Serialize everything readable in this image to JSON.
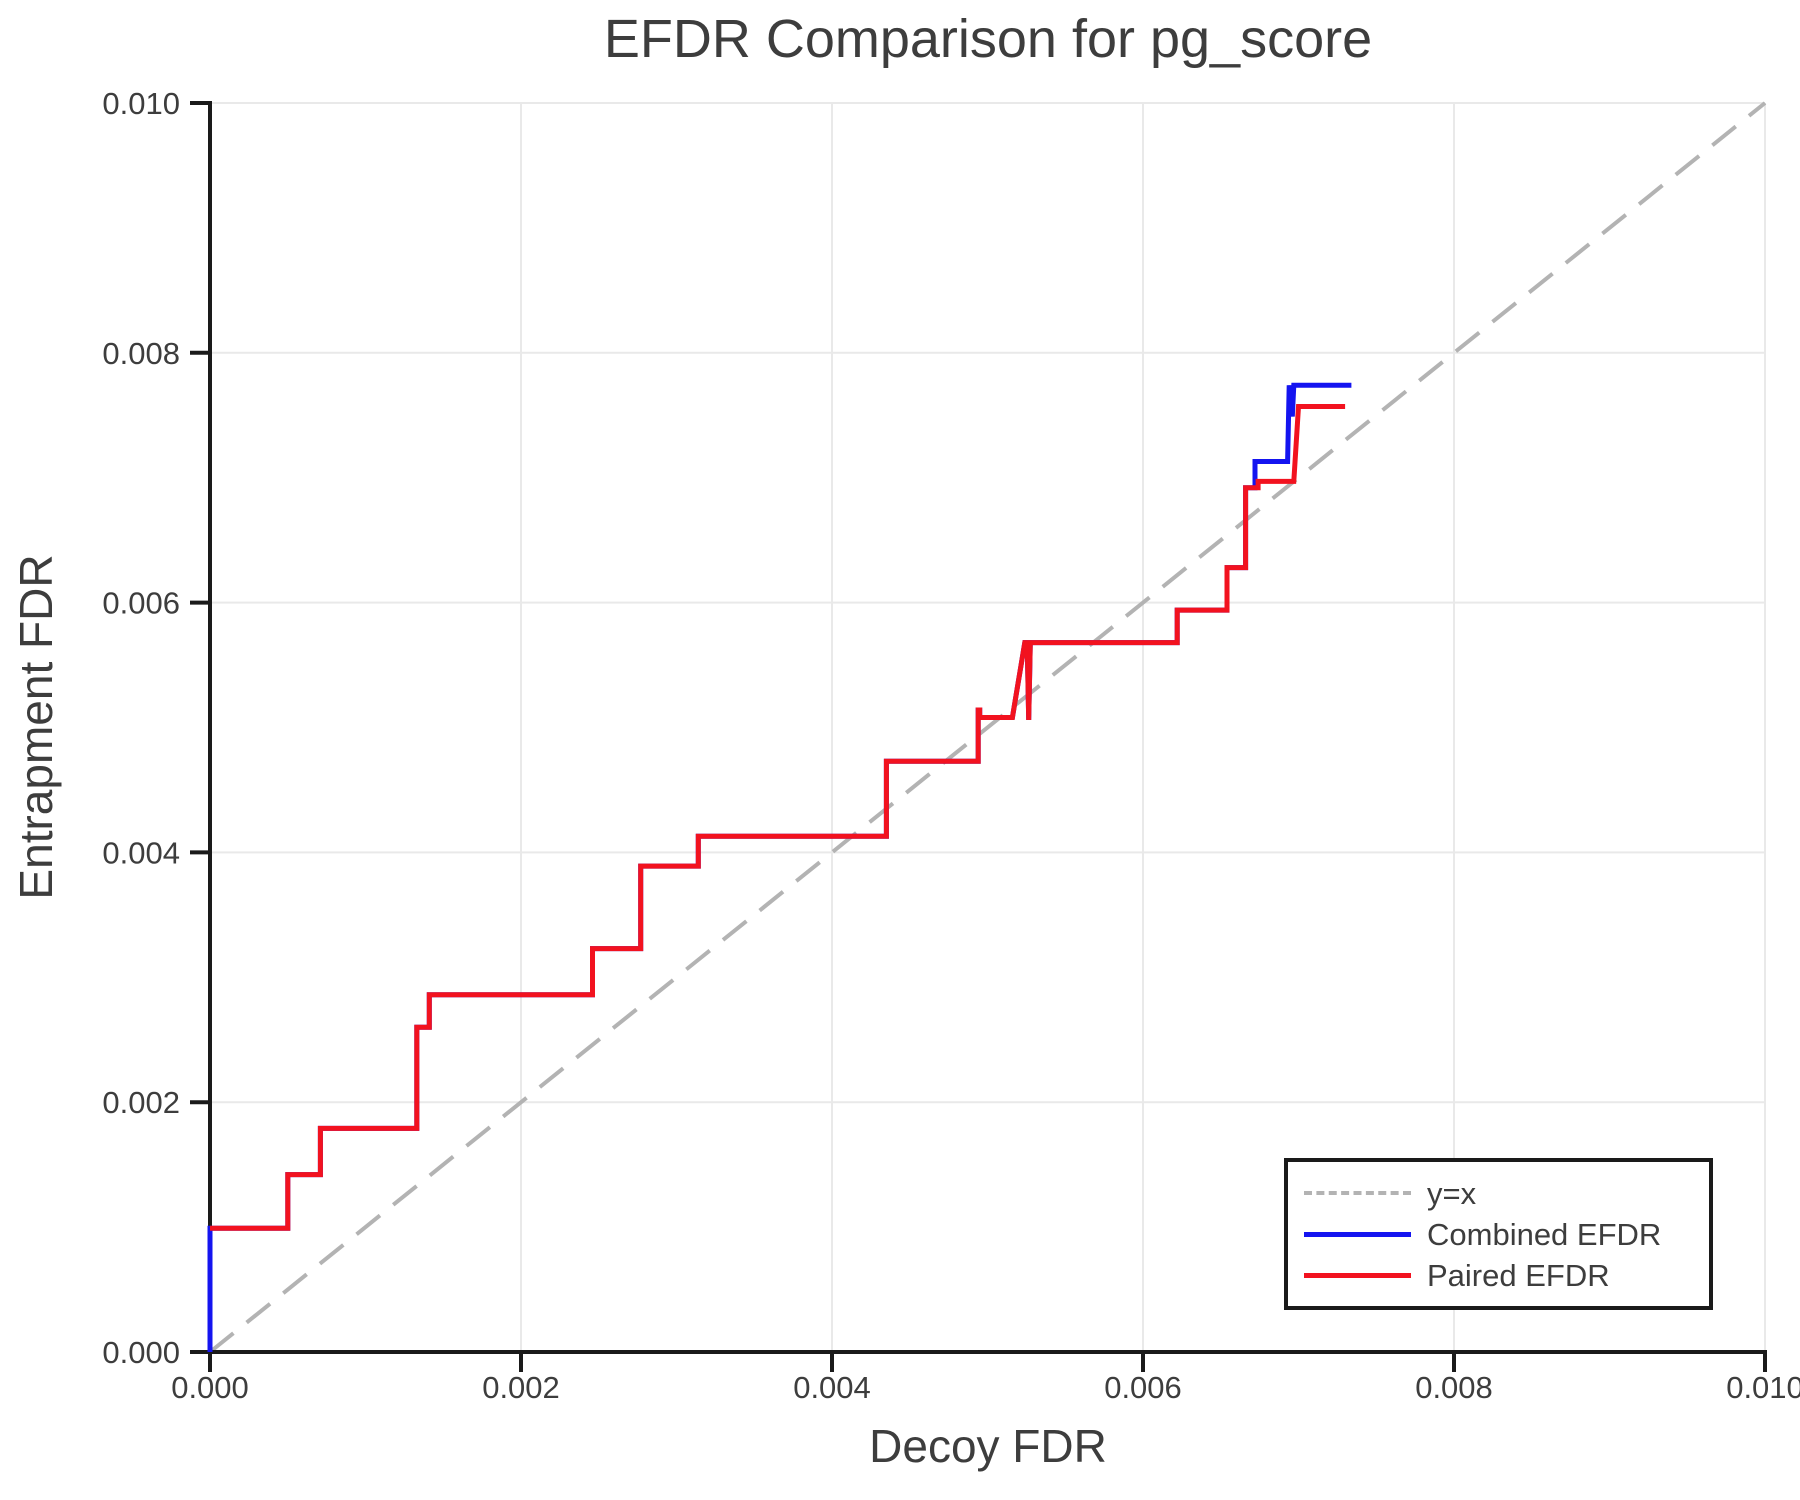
{
  "page": {
    "background": "#ffffff"
  },
  "chart_data": {
    "type": "line",
    "title": "EFDR Comparison for pg_score",
    "xlabel": "Decoy FDR",
    "ylabel": "Entrapment FDR",
    "xlim": [
      0,
      0.01
    ],
    "ylim": [
      0,
      0.01
    ],
    "xticks": [
      0,
      0.002,
      0.004,
      0.006,
      0.008,
      0.01
    ],
    "yticks": [
      0,
      0.002,
      0.004,
      0.006,
      0.008,
      0.01
    ],
    "tick_decimals": 3,
    "grid": true,
    "legend_position": "lower right",
    "colors": {
      "text": "#3d3d3d",
      "axis": "#1a1a1a",
      "grid": "#e9e9e9"
    },
    "series": [
      {
        "name": "y=x",
        "color": "#b3b3b3",
        "style": "dashed",
        "width": 4,
        "points": [
          [
            0,
            0
          ],
          [
            0.01,
            0.01
          ]
        ]
      },
      {
        "name": "Combined EFDR",
        "color": "#1414f0",
        "style": "solid",
        "width": 5,
        "points": [
          [
            0,
            0
          ],
          [
            0,
            0.00099
          ],
          [
            0.0005,
            0.00099
          ],
          [
            0.0005,
            0.00142
          ],
          [
            0.00071,
            0.00142
          ],
          [
            0.00071,
            0.00179
          ],
          [
            0.00133,
            0.00179
          ],
          [
            0.00133,
            0.0026
          ],
          [
            0.00141,
            0.0026
          ],
          [
            0.00141,
            0.00286
          ],
          [
            0.00246,
            0.00286
          ],
          [
            0.00246,
            0.00323
          ],
          [
            0.00277,
            0.00323
          ],
          [
            0.00277,
            0.00389
          ],
          [
            0.00314,
            0.00389
          ],
          [
            0.00314,
            0.00413
          ],
          [
            0.00435,
            0.00413
          ],
          [
            0.00435,
            0.00473
          ],
          [
            0.00494,
            0.00473
          ],
          [
            0.00494,
            0.00514
          ],
          [
            0.00495,
            0.00514
          ],
          [
            0.00495,
            0.00508
          ],
          [
            0.00516,
            0.00508
          ],
          [
            0.00524,
            0.00568
          ],
          [
            0.005255,
            0.00568
          ],
          [
            0.005265,
            0.00506
          ],
          [
            0.005275,
            0.00568
          ],
          [
            0.00622,
            0.00568
          ],
          [
            0.00622,
            0.00594
          ],
          [
            0.00654,
            0.00594
          ],
          [
            0.00654,
            0.00628
          ],
          [
            0.00666,
            0.00628
          ],
          [
            0.00666,
            0.00692
          ],
          [
            0.00672,
            0.00692
          ],
          [
            0.00672,
            0.00713
          ],
          [
            0.00693,
            0.00713
          ],
          [
            0.00694,
            0.00774
          ],
          [
            0.00696,
            0.00749
          ],
          [
            0.00697,
            0.00774
          ],
          [
            0.00734,
            0.00774
          ]
        ]
      },
      {
        "name": "Paired EFDR",
        "color": "#f2121f",
        "style": "solid",
        "width": 5,
        "points": [
          [
            0,
            0.00099
          ],
          [
            0.0005,
            0.00099
          ],
          [
            0.0005,
            0.00142
          ],
          [
            0.00071,
            0.00142
          ],
          [
            0.00071,
            0.00179
          ],
          [
            0.00133,
            0.00179
          ],
          [
            0.00133,
            0.0026
          ],
          [
            0.00141,
            0.0026
          ],
          [
            0.00141,
            0.00286
          ],
          [
            0.00246,
            0.00286
          ],
          [
            0.00246,
            0.00323
          ],
          [
            0.00277,
            0.00323
          ],
          [
            0.00277,
            0.00389
          ],
          [
            0.00314,
            0.00389
          ],
          [
            0.00314,
            0.00413
          ],
          [
            0.00435,
            0.00413
          ],
          [
            0.00435,
            0.00473
          ],
          [
            0.00494,
            0.00473
          ],
          [
            0.00494,
            0.00514
          ],
          [
            0.00495,
            0.00514
          ],
          [
            0.00495,
            0.00508
          ],
          [
            0.00516,
            0.00508
          ],
          [
            0.00524,
            0.00568
          ],
          [
            0.005255,
            0.00568
          ],
          [
            0.005265,
            0.00506
          ],
          [
            0.005275,
            0.00568
          ],
          [
            0.00622,
            0.00568
          ],
          [
            0.00622,
            0.00594
          ],
          [
            0.00654,
            0.00594
          ],
          [
            0.00654,
            0.00628
          ],
          [
            0.00666,
            0.00628
          ],
          [
            0.00666,
            0.00692
          ],
          [
            0.00674,
            0.00692
          ],
          [
            0.00674,
            0.00697
          ],
          [
            0.00697,
            0.00697
          ],
          [
            0.007,
            0.00757
          ],
          [
            0.0073,
            0.00757
          ]
        ]
      }
    ]
  }
}
